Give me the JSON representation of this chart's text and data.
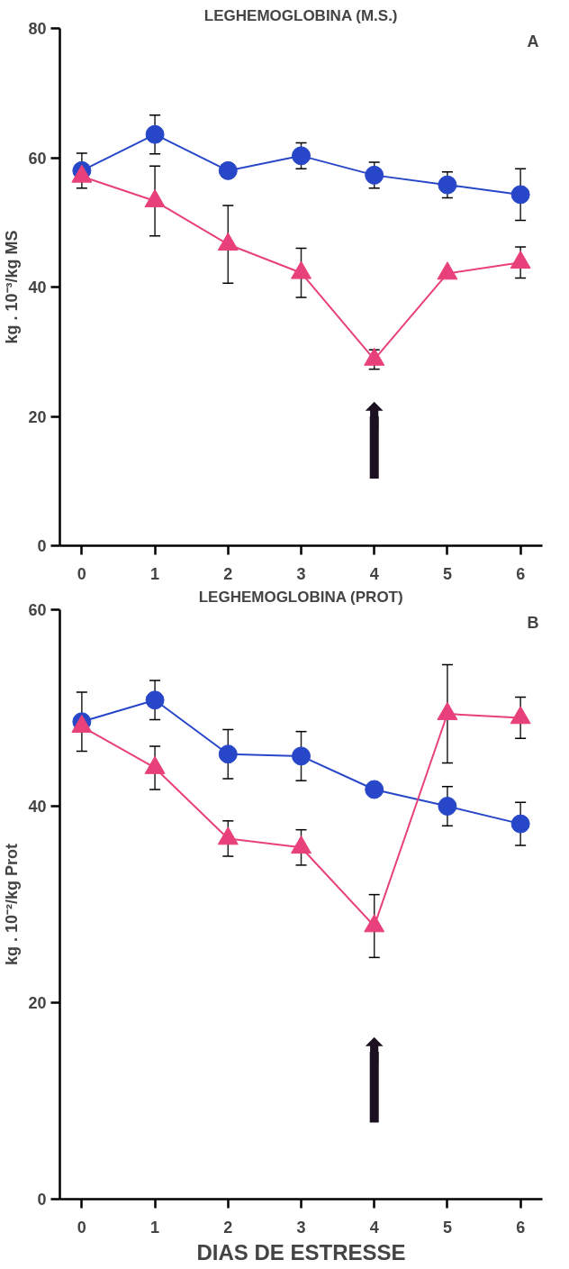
{
  "chart_data": [
    {
      "type": "line",
      "title": "LEGHEMOGLOBINA (M.S.)",
      "ylabel": "kg . 10⁻³/kg MS",
      "x": [
        0,
        1,
        2,
        3,
        4,
        5,
        6
      ],
      "xlim": [
        -0.3,
        6.3
      ],
      "xticks": [
        0,
        1,
        2,
        3,
        4,
        5,
        6
      ],
      "ylim": [
        0,
        80
      ],
      "yticks": [
        0,
        20,
        40,
        60,
        80
      ],
      "grid": false,
      "line_style": "solid",
      "series": [
        {
          "color": "#2747c8",
          "marker": "circle",
          "values": [
            58,
            63.6,
            58,
            60.3,
            57.3,
            55.8,
            54.3
          ],
          "errors": [
            2.7,
            3,
            null,
            2,
            2,
            2,
            4
          ]
        },
        {
          "color": "#e8407a",
          "marker": "triangle",
          "values": [
            57.1,
            53.3,
            46.6,
            42.2,
            28.8,
            42.1,
            43.8
          ],
          "errors": [
            null,
            5.4,
            6,
            3.8,
            1.5,
            null,
            2.4
          ]
        }
      ],
      "annotations": [
        "A"
      ],
      "ref_lines": [
        {
          "axis": "x",
          "value": 4,
          "label": "⬆"
        }
      ]
    },
    {
      "type": "line",
      "title": "LEGHEMOGLOBINA (PROT)",
      "ylabel": "kg . 10⁻²/kg Prot",
      "xlabel": "DIAS DE ESTRESSE",
      "x": [
        0,
        1,
        2,
        3,
        4,
        5,
        6
      ],
      "xlim": [
        -0.3,
        6.3
      ],
      "xticks": [
        0,
        1,
        2,
        3,
        4,
        5,
        6
      ],
      "ylim": [
        0,
        60
      ],
      "yticks": [
        0,
        20,
        40,
        60
      ],
      "grid": false,
      "line_style": "solid",
      "series": [
        {
          "color": "#2747c8",
          "marker": "circle",
          "values": [
            48.6,
            50.8,
            45.3,
            45.1,
            41.7,
            40,
            38.2
          ],
          "errors": [
            3,
            2,
            2.5,
            2.5,
            null,
            2,
            2.2
          ]
        },
        {
          "color": "#e8407a",
          "marker": "triangle",
          "values": [
            48.1,
            43.9,
            36.7,
            35.8,
            27.8,
            49.4,
            49
          ],
          "errors": [
            null,
            2.2,
            1.8,
            1.8,
            3.2,
            5,
            2.1
          ]
        }
      ],
      "annotations": [
        "B"
      ],
      "ref_lines": [
        {
          "axis": "x",
          "value": 4,
          "label": "⬆"
        }
      ]
    }
  ]
}
